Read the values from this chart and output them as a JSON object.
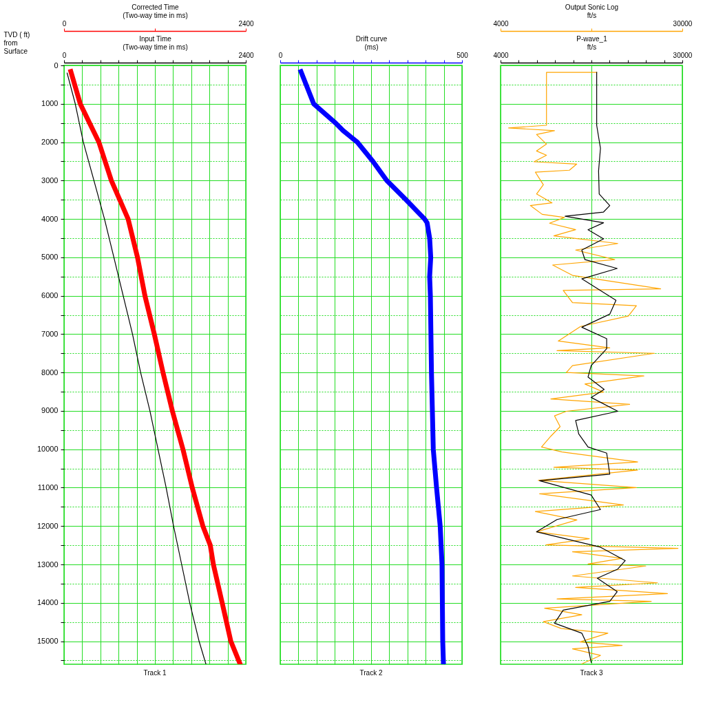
{
  "chart_data": [
    {
      "type": "line",
      "title": "Track 1",
      "ylabel": "TVD ( ft)\nfrom\nSurface",
      "xlabel": "Input Time\n(Two-way time in ms)",
      "x2label": "Corrected Time\n(Two-way time in ms)",
      "xlim": [
        0,
        2400
      ],
      "xticks": [
        0,
        {
          "value": 240,
          "label": null
        },
        {
          "value": 480,
          "label": null
        },
        {
          "value": 720,
          "label": null
        },
        {
          "value": 960,
          "label": null
        },
        {
          "value": 1200,
          "label": null
        },
        {
          "value": 1440,
          "label": null
        },
        {
          "value": 1680,
          "label": null
        },
        {
          "value": 1920,
          "label": null
        },
        {
          "value": 2160,
          "label": null
        },
        2400
      ],
      "x2lim": [
        0,
        2400
      ],
      "x2ticks": [
        0,
        {
          "value": 1200,
          "label": null
        },
        2400
      ],
      "ylim": [
        15600,
        0
      ],
      "yticks": [
        0,
        {
          "value": 500,
          "label": null
        },
        1000,
        {
          "value": 1500,
          "label": null
        },
        2000,
        {
          "value": 2500,
          "label": null
        },
        3000,
        {
          "value": 3500,
          "label": null
        },
        4000,
        {
          "value": 4500,
          "label": null
        },
        5000,
        {
          "value": 5500,
          "label": null
        },
        6000,
        {
          "value": 6500,
          "label": null
        },
        7000,
        {
          "value": 7500,
          "label": null
        },
        8000,
        {
          "value": 8500,
          "label": null
        },
        9000,
        {
          "value": 9500,
          "label": null
        },
        10000,
        {
          "value": 10500,
          "label": null
        },
        11000,
        {
          "value": 11500,
          "label": null
        },
        12000,
        {
          "value": 12500,
          "label": null
        },
        13000,
        {
          "value": 13500,
          "label": null
        },
        14000,
        {
          "value": 14500,
          "label": null
        },
        15000,
        {
          "value": 15500,
          "label": null
        }
      ],
      "grid": true,
      "marker": "none",
      "series": [
        {
          "color": "#000000",
          "x": [
            41,
            148,
            255,
            395,
            534,
            658,
            781,
            904,
            1011,
            1134,
            1241,
            1348,
            1446,
            1553,
            1660,
            1783,
            1874
          ],
          "values": [
            200,
            1000,
            2000,
            3000,
            4000,
            5000,
            6000,
            7000,
            8000,
            9000,
            10000,
            11000,
            12000,
            13000,
            14000,
            15000,
            15600
          ]
        },
        {
          "color": "#ff0000",
          "axis": "x2",
          "x": [
            90,
            214,
            337,
            460,
            625,
            846,
            970,
            1068,
            1192,
            1307,
            1430,
            1570,
            1693,
            1833,
            1931,
            1972,
            2088,
            2202,
            2326
          ],
          "values": [
            160,
            1000,
            1500,
            2000,
            3000,
            4000,
            5000,
            6000,
            7000,
            8000,
            9000,
            10000,
            11000,
            12000,
            12500,
            13000,
            14000,
            15000,
            15600
          ]
        }
      ]
    },
    {
      "type": "line",
      "title": "Track 2",
      "xlabel": "Drift curve\n(ms)",
      "xlim": [
        0,
        500
      ],
      "xticks": [
        0,
        {
          "value": 50,
          "label": null
        },
        {
          "value": 100,
          "label": null
        },
        {
          "value": 150,
          "label": null
        },
        {
          "value": 200,
          "label": null
        },
        {
          "value": 250,
          "label": null
        },
        {
          "value": 300,
          "label": null
        },
        {
          "value": 350,
          "label": null
        },
        {
          "value": 400,
          "label": null
        },
        {
          "value": 450,
          "label": null
        },
        500
      ],
      "ylim": [
        15600,
        0
      ],
      "yticks": [
        0,
        {
          "value": 500,
          "label": null
        },
        1000,
        {
          "value": 1500,
          "label": null
        },
        2000,
        {
          "value": 2500,
          "label": null
        },
        3000,
        {
          "value": 3500,
          "label": null
        },
        4000,
        {
          "value": 4500,
          "label": null
        },
        5000,
        {
          "value": 5500,
          "label": null
        },
        6000,
        {
          "value": 6500,
          "label": null
        },
        7000,
        {
          "value": 7500,
          "label": null
        },
        8000,
        {
          "value": 8500,
          "label": null
        },
        9000,
        {
          "value": 9500,
          "label": null
        },
        10000,
        {
          "value": 10500,
          "label": null
        },
        11000,
        {
          "value": 11500,
          "label": null
        },
        12000,
        {
          "value": 12500,
          "label": null
        },
        13000,
        {
          "value": 13500,
          "label": null
        },
        14000,
        {
          "value": 14500,
          "label": null
        },
        15000,
        {
          "value": 15500,
          "label": null
        }
      ],
      "tick_labels": "x",
      "grid": true,
      "marker": "none",
      "series": [
        {
          "color": "#0000ff",
          "x": [
            57,
            92,
            152,
            173,
            212,
            255,
            293,
            346,
            397,
            404,
            411,
            414,
            411,
            413,
            416,
            421,
            430,
            440,
            445,
            447,
            449
          ],
          "values": [
            160,
            1000,
            1500,
            1700,
            2000,
            2500,
            3000,
            3500,
            4000,
            4100,
            4500,
            5000,
            5500,
            6000,
            8000,
            10000,
            11000,
            12000,
            13000,
            15000,
            15600
          ]
        }
      ]
    },
    {
      "type": "line",
      "title": "Track 3",
      "xlabel": "P-wave_1\nft/s",
      "x2label": "Output Sonic Log\nft/s",
      "xlim": [
        4000,
        30000
      ],
      "xticks": [
        4000,
        {
          "value": 6600,
          "label": null
        },
        {
          "value": 9200,
          "label": null
        },
        {
          "value": 11800,
          "label": null
        },
        {
          "value": 14400,
          "label": null
        },
        {
          "value": 17000,
          "label": null
        },
        {
          "value": 19600,
          "label": null
        },
        {
          "value": 22200,
          "label": null
        },
        {
          "value": 24800,
          "label": null
        },
        {
          "value": 27400,
          "label": null
        },
        30000
      ],
      "x2lim": [
        4000,
        30000
      ],
      "x2ticks": [
        4000,
        {
          "value": 17000,
          "label": null
        },
        30000
      ],
      "ylim": [
        15600,
        0
      ],
      "yticks": [
        0,
        {
          "value": 500,
          "label": null
        },
        1000,
        {
          "value": 1500,
          "label": null
        },
        2000,
        {
          "value": 2500,
          "label": null
        },
        3000,
        {
          "value": 3500,
          "label": null
        },
        4000,
        {
          "value": 4500,
          "label": null
        },
        5000,
        {
          "value": 5500,
          "label": null
        },
        6000,
        {
          "value": 6500,
          "label": null
        },
        7000,
        {
          "value": 7500,
          "label": null
        },
        8000,
        {
          "value": 8500,
          "label": null
        },
        9000,
        {
          "value": 9500,
          "label": null
        },
        10000,
        {
          "value": 10500,
          "label": null
        },
        11000,
        {
          "value": 11500,
          "label": null
        },
        12000,
        {
          "value": 12500,
          "label": null
        },
        13000,
        {
          "value": 13500,
          "label": null
        },
        14000,
        {
          "value": 14500,
          "label": null
        },
        15000,
        {
          "value": 15500,
          "label": null
        }
      ],
      "tick_labels": "x",
      "grid": true,
      "marker": "none",
      "series": [
        {
          "color": "#ffa500",
          "axis": "x2",
          "x": [
            17750,
            10570,
            10570,
            5150,
            11720,
            9150,
            10570,
            9150,
            10570,
            8790,
            14900,
            13850,
            8970,
            10120,
            9150,
            11370,
            8260,
            9950,
            13140,
            11010,
            14740,
            11630,
            20770,
            14740,
            20330,
            11450,
            14290,
            26900,
            12960,
            14290,
            23430,
            22280,
            15450,
            12250,
            19620,
            12080,
            26010,
            14290,
            13410,
            24500,
            16070,
            18730,
            11190,
            22460,
            13410,
            11720,
            12520,
            11190,
            9860,
            12790,
            23610,
            11630,
            23610,
            9410,
            23430,
            9590,
            21570,
            8970,
            14920,
            9150,
            16690,
            10480,
            29380,
            14290,
            21390,
            16510,
            24770,
            14290,
            26450,
            14740,
            27870,
            12080,
            25560,
            10300,
            15620,
            10120,
            12700,
            19350,
            15360,
            21390,
            14290,
            18290,
            15620
          ],
          "values": [
            180,
            180,
            1560,
            1630,
            1700,
            1800,
            2050,
            2230,
            2340,
            2510,
            2570,
            2730,
            2780,
            3110,
            3350,
            3580,
            3650,
            3880,
            3960,
            4110,
            4280,
            4440,
            4640,
            4810,
            5060,
            5200,
            5470,
            5820,
            5860,
            6180,
            6260,
            6530,
            6800,
            7180,
            7360,
            7430,
            7500,
            7820,
            8000,
            8090,
            8300,
            8510,
            8690,
            8830,
            9010,
            9130,
            9410,
            9660,
            9940,
            10070,
            10330,
            10470,
            10540,
            10810,
            11000,
            11160,
            11450,
            11620,
            11840,
            12150,
            12330,
            12490,
            12580,
            12670,
            12840,
            12990,
            13040,
            13300,
            13480,
            13600,
            13760,
            13900,
            13960,
            14140,
            14310,
            14490,
            14670,
            14790,
            15020,
            15110,
            15200,
            15370,
            15590
          ]
        },
        {
          "color": "#000000",
          "x": [
            17750,
            17750,
            18290,
            18020,
            18110,
            19620,
            18730,
            13230,
            18730,
            16510,
            18730,
            15620,
            16070,
            20680,
            15620,
            20510,
            19620,
            15620,
            19180,
            19180,
            16960,
            16510,
            18820,
            16960,
            20770,
            14740,
            15180,
            16510,
            19180,
            19620,
            9590,
            16960,
            18290,
            12080,
            9150,
            18290,
            21840,
            20770,
            17840,
            20680,
            19620,
            12960,
            11720,
            15620,
            16510,
            16960
          ],
          "values": [
            180,
            1560,
            2160,
            2750,
            3350,
            3650,
            3820,
            3930,
            4100,
            4280,
            4520,
            4810,
            5060,
            5290,
            5560,
            6120,
            6480,
            6820,
            7120,
            7380,
            7820,
            8120,
            8440,
            8650,
            9010,
            9250,
            9600,
            9940,
            10100,
            10650,
            10820,
            11190,
            11570,
            11830,
            12150,
            12550,
            12900,
            13120,
            13360,
            13710,
            13960,
            14190,
            14530,
            14790,
            15140,
            15550
          ]
        }
      ]
    }
  ]
}
